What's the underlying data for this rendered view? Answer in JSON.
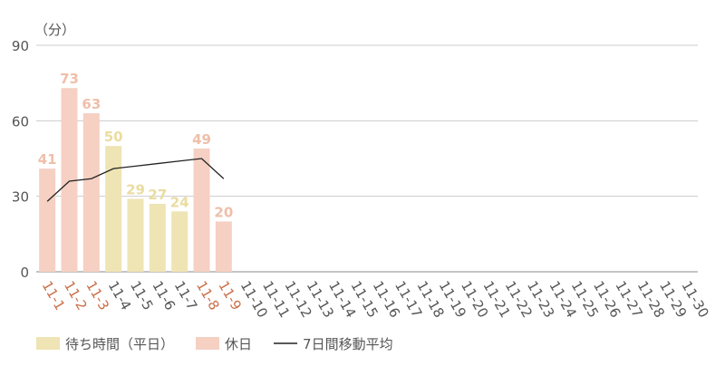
{
  "chart_data": {
    "type": "bar",
    "y_unit": "（分）",
    "categories": [
      "11-1",
      "11-2",
      "11-3",
      "11-4",
      "11-5",
      "11-6",
      "11-7",
      "11-8",
      "11-9",
      "11-10",
      "11-11",
      "11-12",
      "11-13",
      "11-14",
      "11-15",
      "11-16",
      "11-17",
      "11-18",
      "11-19",
      "11-20",
      "11-21",
      "11-22",
      "11-23",
      "11-24",
      "11-25",
      "11-26",
      "11-27",
      "11-28",
      "11-29",
      "11-30"
    ],
    "series": [
      {
        "name": "待ち時間（平日）",
        "type": "bar",
        "color": "#efe4b4",
        "label_color": "#eadca0",
        "values": [
          null,
          null,
          null,
          50,
          29,
          27,
          24,
          null,
          null,
          null,
          null,
          null,
          null,
          null,
          null,
          null,
          null,
          null,
          null,
          null,
          null,
          null,
          null,
          null,
          null,
          null,
          null,
          null,
          null,
          null
        ]
      },
      {
        "name": "休日",
        "type": "bar",
        "color": "#f5d0c3",
        "label_color": "#efbfa9",
        "tick_color": "#c96f48",
        "values": [
          41,
          73,
          63,
          null,
          null,
          null,
          null,
          49,
          20,
          null,
          null,
          null,
          null,
          null,
          null,
          null,
          null,
          null,
          null,
          null,
          null,
          null,
          null,
          null,
          null,
          null,
          null,
          null,
          null,
          null
        ]
      },
      {
        "name": "7日間移動平均",
        "type": "line",
        "color": "#222222",
        "values": [
          28,
          36,
          37,
          41,
          42,
          43,
          44,
          45,
          37,
          null,
          null,
          null,
          null,
          null,
          null,
          null,
          null,
          null,
          null,
          null,
          null,
          null,
          null,
          null,
          null,
          null,
          null,
          null,
          null,
          null
        ]
      }
    ],
    "ylim": [
      0,
      90
    ],
    "yticks": [
      0,
      30,
      60,
      90
    ],
    "grid": true
  }
}
